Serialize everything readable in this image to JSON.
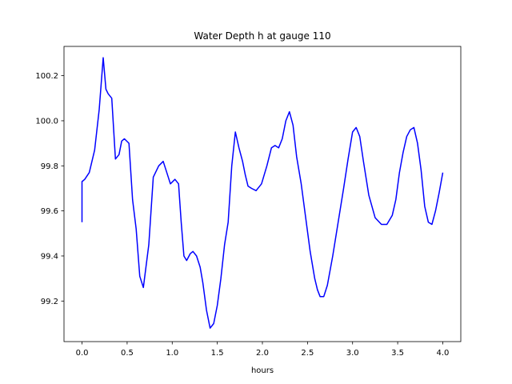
{
  "chart_data": {
    "type": "line",
    "title": "Water Depth h at gauge 110",
    "xlabel": "hours",
    "ylabel": "",
    "xlim": [
      -0.2,
      4.2
    ],
    "ylim": [
      99.02,
      100.33
    ],
    "grid": false,
    "legend": "none",
    "xticks": [
      0.0,
      0.5,
      1.0,
      1.5,
      2.0,
      2.5,
      3.0,
      3.5,
      4.0
    ],
    "xtick_labels": [
      "0.0",
      "0.5",
      "1.0",
      "1.5",
      "2.0",
      "2.5",
      "3.0",
      "3.5",
      "4.0"
    ],
    "yticks": [
      99.2,
      99.4,
      99.6,
      99.8,
      100.0,
      100.2
    ],
    "ytick_labels": [
      "99.2",
      "99.4",
      "99.6",
      "99.8",
      "100.0",
      "100.2"
    ],
    "series": [
      {
        "color": "#0000ff",
        "x": [
          0.0,
          0.0,
          0.03,
          0.08,
          0.14,
          0.19,
          0.235,
          0.265,
          0.29,
          0.33,
          0.37,
          0.41,
          0.44,
          0.47,
          0.52,
          0.56,
          0.6,
          0.64,
          0.68,
          0.74,
          0.79,
          0.85,
          0.9,
          0.94,
          0.98,
          1.03,
          1.07,
          1.1,
          1.13,
          1.16,
          1.2,
          1.23,
          1.27,
          1.31,
          1.34,
          1.38,
          1.42,
          1.46,
          1.5,
          1.54,
          1.58,
          1.62,
          1.66,
          1.7,
          1.74,
          1.78,
          1.81,
          1.84,
          1.88,
          1.93,
          1.99,
          2.05,
          2.1,
          2.14,
          2.18,
          2.22,
          2.26,
          2.3,
          2.34,
          2.38,
          2.43,
          2.48,
          2.53,
          2.58,
          2.61,
          2.64,
          2.68,
          2.72,
          2.78,
          2.84,
          2.9,
          2.95,
          3.0,
          3.04,
          3.08,
          3.12,
          3.18,
          3.25,
          3.32,
          3.38,
          3.44,
          3.48,
          3.52,
          3.56,
          3.6,
          3.64,
          3.68,
          3.72,
          3.76,
          3.8,
          3.84,
          3.88,
          3.92,
          3.96,
          4.0
        ],
        "y": [
          99.55,
          99.73,
          99.74,
          99.77,
          99.87,
          100.05,
          100.28,
          100.14,
          100.12,
          100.1,
          99.83,
          99.85,
          99.91,
          99.92,
          99.9,
          99.65,
          99.52,
          99.31,
          99.26,
          99.45,
          99.75,
          99.8,
          99.82,
          99.77,
          99.72,
          99.74,
          99.72,
          99.55,
          99.4,
          99.38,
          99.41,
          99.42,
          99.4,
          99.35,
          99.28,
          99.16,
          99.08,
          99.1,
          99.18,
          99.3,
          99.45,
          99.55,
          99.8,
          99.95,
          99.88,
          99.82,
          99.76,
          99.71,
          99.7,
          99.69,
          99.72,
          99.8,
          99.88,
          99.89,
          99.88,
          99.92,
          100.0,
          100.04,
          99.98,
          99.84,
          99.72,
          99.57,
          99.42,
          99.3,
          99.25,
          99.22,
          99.22,
          99.27,
          99.4,
          99.55,
          99.7,
          99.83,
          99.95,
          99.97,
          99.93,
          99.82,
          99.67,
          99.57,
          99.54,
          99.54,
          99.58,
          99.65,
          99.77,
          99.86,
          99.93,
          99.96,
          99.97,
          99.9,
          99.78,
          99.62,
          99.55,
          99.54,
          99.6,
          99.68,
          99.77
        ]
      }
    ]
  }
}
